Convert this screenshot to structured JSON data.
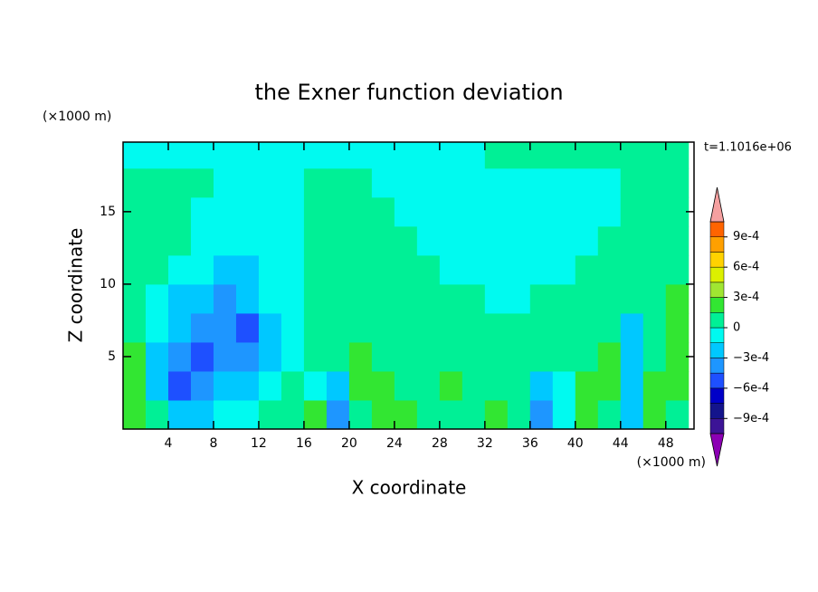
{
  "chart_data": {
    "type": "contour",
    "title": "the Exner function deviation",
    "xlabel": "X coordinate",
    "ylabel": "Z coordinate",
    "xunit": "(×1000 m)",
    "yunit": "(×1000 m)",
    "annotation": "t=1.1016e+06",
    "xlim": [
      0,
      50.5
    ],
    "ylim": [
      0,
      19.8
    ],
    "xticks": [
      4,
      8,
      12,
      16,
      20,
      24,
      28,
      32,
      36,
      40,
      44,
      48
    ],
    "yticks": [
      5,
      10,
      15
    ],
    "x": [
      1,
      3,
      5,
      7,
      9,
      11,
      13,
      15,
      17,
      19,
      21,
      23,
      25,
      27,
      29,
      31,
      33,
      35,
      37,
      39,
      41,
      43,
      45,
      47,
      49
    ],
    "y": [
      1,
      3,
      5,
      7,
      9,
      11,
      13,
      15,
      17,
      19
    ],
    "z": [
      [
        0.0002,
        5e-05,
        -0.0002,
        -0.0002,
        -5e-05,
        -5e-05,
        5e-05,
        5e-05,
        0.0002,
        -0.0004,
        5e-05,
        0.0002,
        0.0002,
        5e-05,
        5e-05,
        5e-05,
        0.0002,
        5e-05,
        -0.0004,
        -5e-05,
        0.0002,
        5e-05,
        -0.0002,
        0.0002,
        5e-05
      ],
      [
        0.0002,
        -0.0002,
        -0.0005,
        -0.0004,
        -0.0002,
        -0.0002,
        -5e-05,
        5e-05,
        -5e-05,
        -0.0002,
        0.0002,
        0.0002,
        5e-05,
        5e-05,
        0.0002,
        5e-05,
        5e-05,
        5e-05,
        -0.0002,
        -5e-05,
        0.0002,
        0.0002,
        -0.0002,
        0.0002,
        0.0002
      ],
      [
        0.0002,
        -0.0002,
        -0.0004,
        -0.0005,
        -0.0004,
        -0.0004,
        -0.0002,
        -5e-05,
        5e-05,
        5e-05,
        0.0002,
        5e-05,
        5e-05,
        5e-05,
        5e-05,
        5e-05,
        5e-05,
        5e-05,
        5e-05,
        5e-05,
        5e-05,
        0.0002,
        -0.0002,
        5e-05,
        0.0002
      ],
      [
        5e-05,
        -5e-05,
        -0.0002,
        -0.0004,
        -0.0004,
        -0.0005,
        -0.0002,
        -5e-05,
        5e-05,
        5e-05,
        5e-05,
        5e-05,
        5e-05,
        5e-05,
        5e-05,
        5e-05,
        5e-05,
        5e-05,
        5e-05,
        5e-05,
        5e-05,
        5e-05,
        -0.0002,
        5e-05,
        0.0002
      ],
      [
        5e-05,
        -5e-05,
        -0.0002,
        -0.0002,
        -0.0004,
        -0.0002,
        -5e-05,
        -5e-05,
        5e-05,
        5e-05,
        5e-05,
        5e-05,
        5e-05,
        5e-05,
        5e-05,
        5e-05,
        -5e-05,
        -5e-05,
        5e-05,
        5e-05,
        5e-05,
        5e-05,
        5e-05,
        5e-05,
        0.0002
      ],
      [
        5e-05,
        5e-05,
        -5e-05,
        -5e-05,
        -0.0002,
        -0.0002,
        -5e-05,
        -5e-05,
        5e-05,
        5e-05,
        5e-05,
        5e-05,
        5e-05,
        5e-05,
        -5e-05,
        -5e-05,
        -5e-05,
        -5e-05,
        -5e-05,
        -5e-05,
        5e-05,
        5e-05,
        5e-05,
        5e-05,
        5e-05
      ],
      [
        5e-05,
        5e-05,
        5e-05,
        -5e-05,
        -5e-05,
        -5e-05,
        -5e-05,
        -5e-05,
        5e-05,
        5e-05,
        5e-05,
        5e-05,
        5e-05,
        -5e-05,
        -5e-05,
        -5e-05,
        -5e-05,
        -5e-05,
        -5e-05,
        -5e-05,
        -5e-05,
        5e-05,
        5e-05,
        5e-05,
        5e-05
      ],
      [
        5e-05,
        5e-05,
        5e-05,
        -5e-05,
        -5e-05,
        -5e-05,
        -5e-05,
        -5e-05,
        5e-05,
        5e-05,
        5e-05,
        5e-05,
        -5e-05,
        -5e-05,
        -5e-05,
        -5e-05,
        -5e-05,
        -5e-05,
        -5e-05,
        -5e-05,
        -5e-05,
        -5e-05,
        5e-05,
        5e-05,
        5e-05
      ],
      [
        5e-05,
        5e-05,
        5e-05,
        5e-05,
        -5e-05,
        -5e-05,
        -5e-05,
        -5e-05,
        5e-05,
        5e-05,
        5e-05,
        -5e-05,
        -5e-05,
        -5e-05,
        -5e-05,
        -5e-05,
        -5e-05,
        -5e-05,
        -5e-05,
        -5e-05,
        -5e-05,
        -5e-05,
        5e-05,
        5e-05,
        5e-05
      ],
      [
        -5e-05,
        -5e-05,
        -5e-05,
        -5e-05,
        -5e-05,
        -5e-05,
        -5e-05,
        -5e-05,
        -5e-05,
        -5e-05,
        -5e-05,
        -5e-05,
        -5e-05,
        -5e-05,
        -5e-05,
        -5e-05,
        5e-05,
        5e-05,
        5e-05,
        5e-05,
        5e-05,
        5e-05,
        5e-05,
        5e-05,
        5e-05
      ]
    ],
    "levels": [
      -0.00105,
      -0.0009,
      -0.00075,
      -0.0006,
      -0.00045,
      -0.0003,
      -0.00015,
      0,
      0.00015,
      0.0003,
      0.00045,
      0.0006,
      0.00075,
      0.0009,
      0.00105
    ],
    "colors": [
      "#3c1496",
      "#14148c",
      "#0000c8",
      "#1e50ff",
      "#1e96ff",
      "#00c8ff",
      "#00faf0",
      "#00f096",
      "#32e632",
      "#a0e632",
      "#dcf000",
      "#ffd200",
      "#ffa000",
      "#ff6400",
      "#ff2800"
    ],
    "under_color": "#8c00b4",
    "over_color": "#f5a0a0",
    "colorbar_ticks": [
      {
        "value": 0.0009,
        "label": "9e-4"
      },
      {
        "value": 0.0006,
        "label": "6e-4"
      },
      {
        "value": 0.0003,
        "label": "3e-4"
      },
      0,
      {
        "value": -0.0003,
        "label": "−3e-4"
      },
      {
        "value": -0.0006,
        "label": "−6e-4"
      },
      {
        "value": -0.0009,
        "label": "−9e-4"
      }
    ]
  }
}
